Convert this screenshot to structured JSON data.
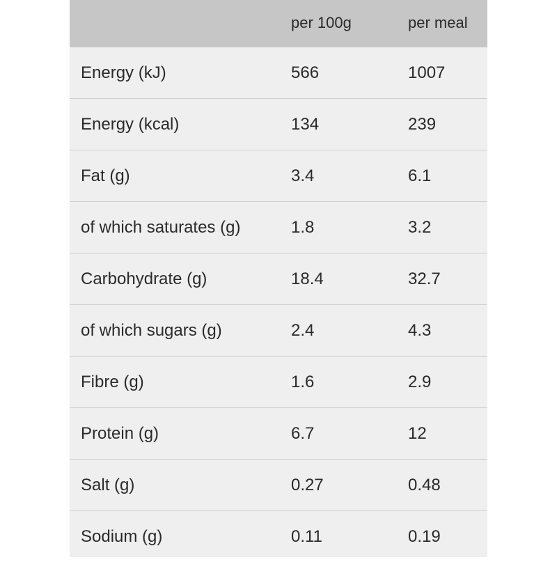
{
  "table": {
    "headers": [
      "",
      "per 100g",
      "per meal"
    ],
    "rows": [
      [
        "Energy (kJ)",
        "566",
        "1007"
      ],
      [
        "Energy (kcal)",
        "134",
        "239"
      ],
      [
        "Fat (g)",
        "3.4",
        "6.1"
      ],
      [
        "of which saturates (g)",
        "1.8",
        "3.2"
      ],
      [
        "Carbohydrate (g)",
        "18.4",
        "32.7"
      ],
      [
        "of which sugars (g)",
        "2.4",
        "4.3"
      ],
      [
        "Fibre (g)",
        "1.6",
        "2.9"
      ],
      [
        "Protein (g)",
        "6.7",
        "12"
      ],
      [
        "Salt (g)",
        "0.27",
        "0.48"
      ],
      [
        "Sodium (g)",
        "0.11",
        "0.19"
      ]
    ]
  }
}
